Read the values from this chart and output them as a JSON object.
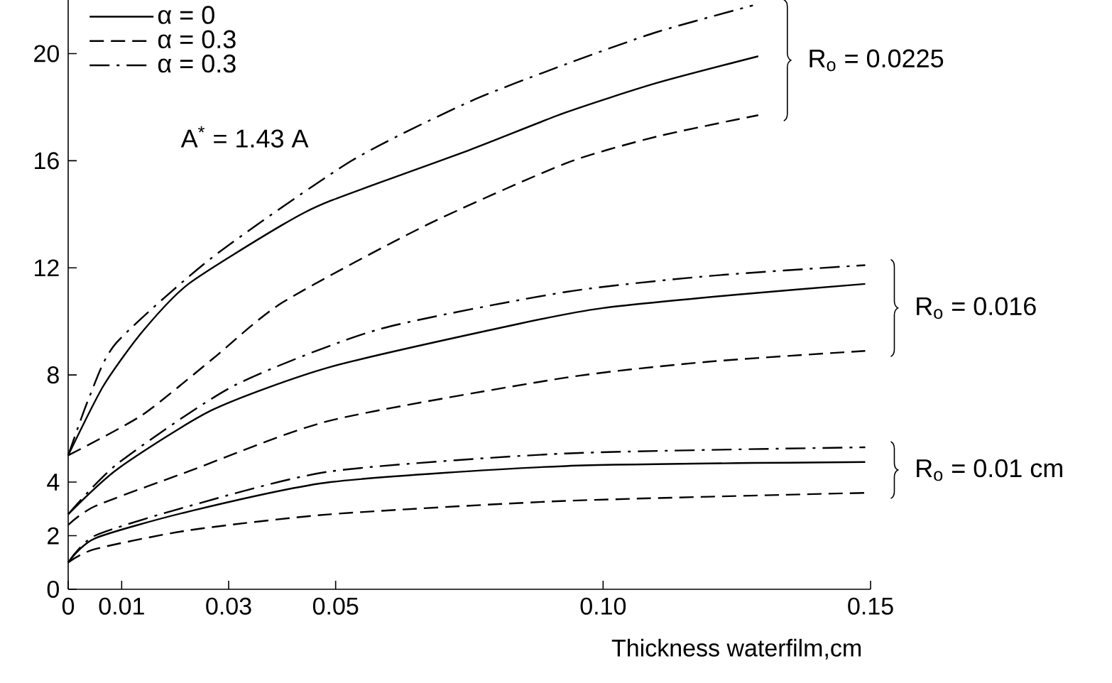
{
  "chart_data": {
    "type": "line",
    "xlabel": "Thickness waterfilm,cm",
    "xlim": [
      0,
      0.15
    ],
    "ylim": [
      0,
      22
    ],
    "xticks": [
      0,
      0.01,
      0.03,
      0.05,
      {
        "value": 0.1,
        "label": "0.10"
      },
      0.15
    ],
    "yticks": [
      0,
      2,
      4,
      8,
      12,
      16,
      20
    ],
    "legend": "top left",
    "grid": false,
    "marker": "none",
    "series": [
      {
        "name": "α = 0",
        "color": "#000000",
        "line_style": "solid",
        "x": [
          0,
          0.0066,
          0.0138,
          0.0225,
          0.04,
          0.049,
          0.075,
          0.093,
          0.11,
          0.129
        ],
        "values": [
          5,
          7.6,
          9.6,
          11.4,
          13.6,
          14.5,
          16.4,
          17.8,
          18.9,
          19.9
        ]
      },
      {
        "name": "α = 0.3",
        "color": "#000000",
        "line_style": "dashed",
        "x": [
          0,
          0.0138,
          0.027,
          0.04,
          0.067,
          0.093,
          0.11,
          0.129
        ],
        "values": [
          5,
          6.5,
          8.6,
          10.7,
          13.6,
          15.9,
          16.9,
          17.7
        ]
      },
      {
        "name": "α = 0.3",
        "color": "#000000",
        "line_style": "dashdot",
        "x": [
          0,
          0.004,
          0.009,
          0.027,
          0.053,
          0.075,
          0.093,
          0.11,
          0.128
        ],
        "values": [
          5,
          7.2,
          9.2,
          12.4,
          16.0,
          18.2,
          19.6,
          20.8,
          21.8
        ]
      },
      {
        "color": "#000000",
        "line_style": "solid",
        "x": [
          0,
          0.0093,
          0.027,
          0.049,
          0.084,
          0.1,
          0.125,
          0.149
        ],
        "values": [
          2.8,
          4.5,
          6.7,
          8.3,
          9.9,
          10.5,
          11.0,
          11.4
        ]
      },
      {
        "color": "#000000",
        "line_style": "dashed",
        "x": [
          0,
          0.005,
          0.0225,
          0.049,
          0.093,
          0.12,
          0.149
        ],
        "values": [
          2.4,
          3.1,
          4.4,
          6.3,
          7.9,
          8.5,
          8.9
        ]
      },
      {
        "color": "#000000",
        "line_style": "dashdot",
        "x": [
          0,
          0.0093,
          0.031,
          0.058,
          0.093,
          0.12,
          0.149
        ],
        "values": [
          2.8,
          4.7,
          7.6,
          9.7,
          11.1,
          11.7,
          12.1
        ]
      },
      {
        "color": "#000000",
        "line_style": "solid",
        "x": [
          0,
          0.005,
          0.0225,
          0.049,
          0.093,
          0.149
        ],
        "values": [
          1.0,
          1.9,
          2.9,
          4.0,
          4.6,
          4.75
        ]
      },
      {
        "color": "#000000",
        "line_style": "dashed",
        "x": [
          0,
          0.005,
          0.0225,
          0.049,
          0.093,
          0.149
        ],
        "values": [
          1.0,
          1.5,
          2.2,
          2.8,
          3.3,
          3.6
        ]
      },
      {
        "color": "#000000",
        "line_style": "dashdot",
        "x": [
          0,
          0.005,
          0.0225,
          0.049,
          0.093,
          0.149
        ],
        "values": [
          1.0,
          2.0,
          3.1,
          4.4,
          5.07,
          5.3
        ]
      }
    ],
    "annotations": [
      "A$^{*}$ = 1.43 A",
      "R$_{o}$ = 0.0225",
      "R$_{o}$ = 0.016",
      "R$_{o}$ = 0.01 cm"
    ]
  }
}
